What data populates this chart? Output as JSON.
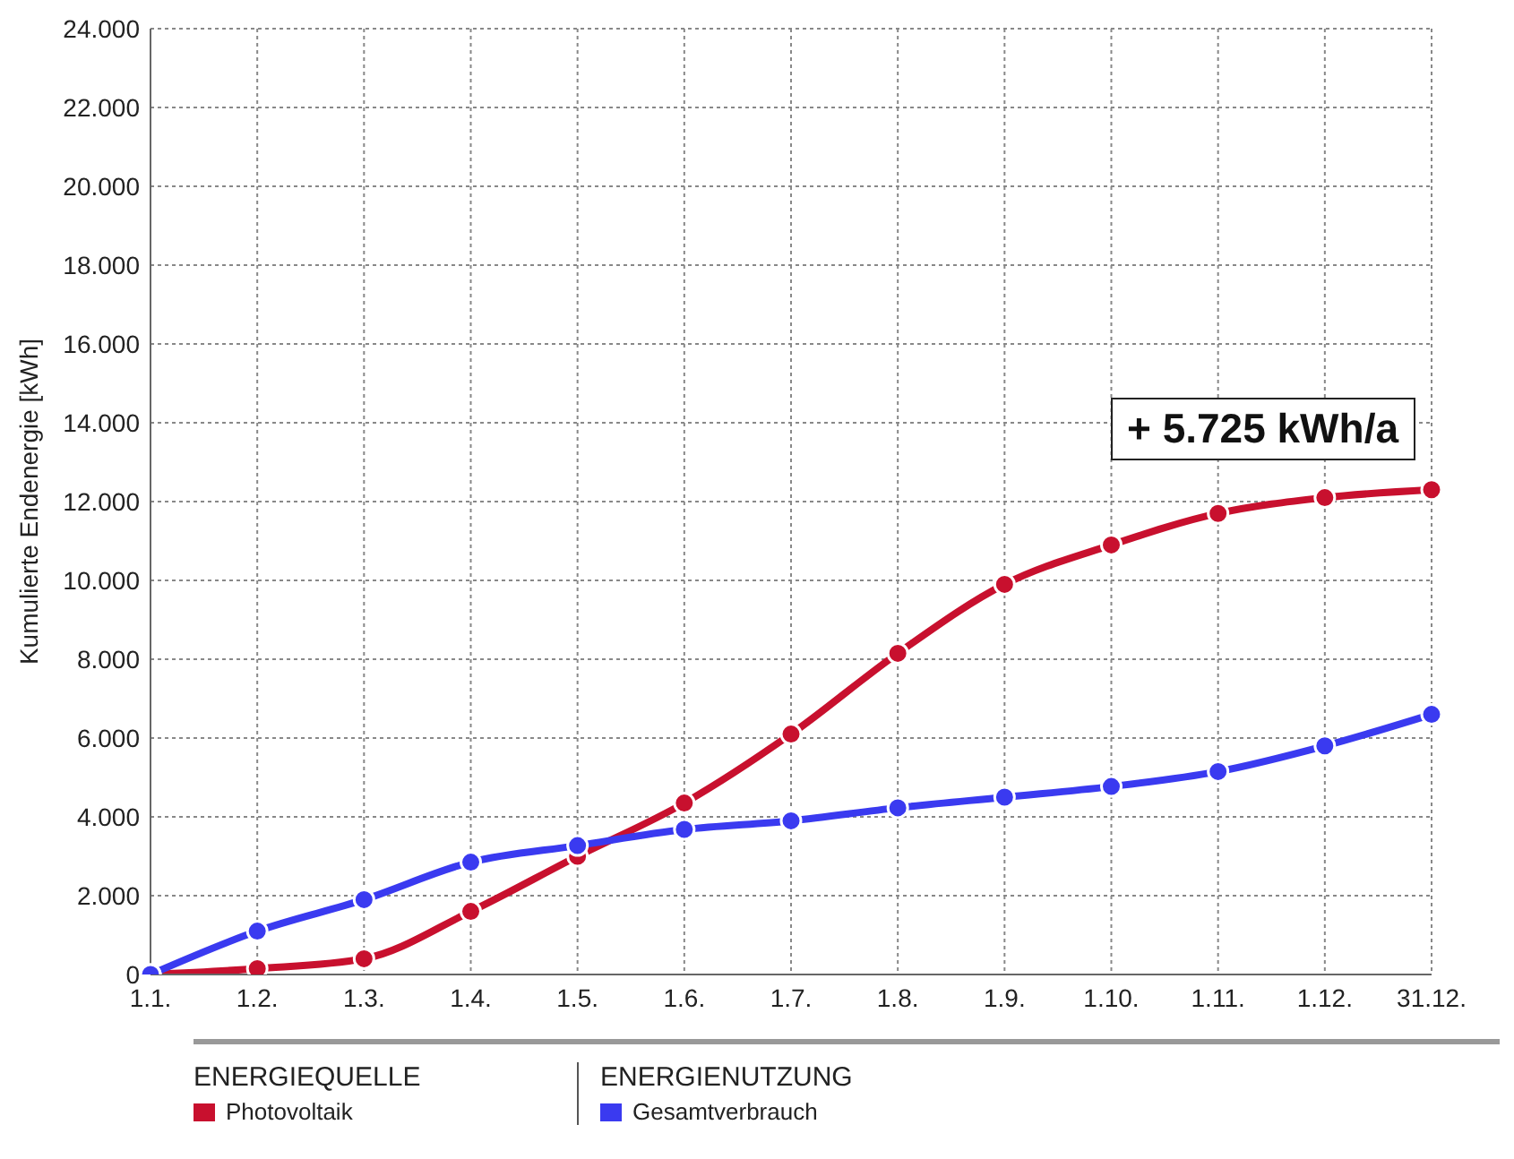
{
  "chart_data": {
    "type": "line",
    "ylabel": "Kumulierte Endenergie [kWh]",
    "categories": [
      "1.1.",
      "1.2.",
      "1.3.",
      "1.4.",
      "1.5.",
      "1.6.",
      "1.7.",
      "1.8.",
      "1.9.",
      "1.10.",
      "1.11.",
      "1.12.",
      "31.12."
    ],
    "series": [
      {
        "name": "Photovoltaik",
        "color": "#c8102e",
        "values": [
          0,
          150,
          400,
          1600,
          3000,
          4350,
          6100,
          8150,
          9900,
          10900,
          11700,
          12100,
          12300
        ]
      },
      {
        "name": "Gesamtverbrauch",
        "color": "#3a3af0",
        "values": [
          0,
          1100,
          1900,
          2850,
          3270,
          3680,
          3900,
          4230,
          4500,
          4770,
          5150,
          5800,
          6600
        ]
      }
    ],
    "ylim": [
      0,
      24000
    ],
    "yticks": [
      {
        "value": 0,
        "label": "0"
      },
      {
        "value": 2000,
        "label": "2.000"
      },
      {
        "value": 4000,
        "label": "4.000"
      },
      {
        "value": 6000,
        "label": "6.000"
      },
      {
        "value": 8000,
        "label": "8.000"
      },
      {
        "value": 10000,
        "label": "10.000"
      },
      {
        "value": 12000,
        "label": "12.000"
      },
      {
        "value": 14000,
        "label": "14.000"
      },
      {
        "value": 16000,
        "label": "16.000"
      },
      {
        "value": 18000,
        "label": "18.000"
      },
      {
        "value": 20000,
        "label": "20.000"
      },
      {
        "value": 22000,
        "label": "22.000"
      },
      {
        "value": 24000,
        "label": "24.000"
      }
    ],
    "annotations": [
      "+ 5.725 kWh/a",
      "ENERGIEQUELLE",
      "ENERGIENUTZUNG"
    ],
    "grid": true,
    "legend": "bottom",
    "marker": "circle",
    "line_style": "solid"
  }
}
